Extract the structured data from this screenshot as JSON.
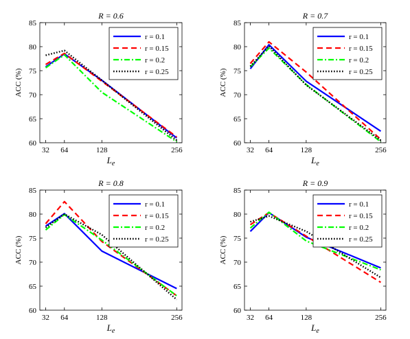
{
  "chart_data": [
    {
      "type": "line",
      "title": "R = 0.6",
      "xlabel_main": "L",
      "xlabel_sub": "e",
      "ylabel": "ACC (%)",
      "ylim": [
        60,
        85
      ],
      "yticks": [
        60,
        65,
        70,
        75,
        80,
        85
      ],
      "xticks": [
        32,
        64,
        128,
        256
      ],
      "legend_position": "top-right",
      "series": [
        {
          "name": "r = 0.1",
          "color": "#0000ff",
          "dash": "solid",
          "x": [
            32,
            64,
            128,
            256
          ],
          "y": [
            75.8,
            78.5,
            73.0,
            61.0
          ]
        },
        {
          "name": "r = 0.15",
          "color": "#ff0000",
          "dash": "dashed",
          "x": [
            32,
            64,
            128,
            256
          ],
          "y": [
            76.3,
            78.6,
            72.8,
            61.2
          ]
        },
        {
          "name": "r = 0.2",
          "color": "#00ff00",
          "dash": "dashdot",
          "x": [
            32,
            64,
            128,
            256
          ],
          "y": [
            75.6,
            78.3,
            70.5,
            60.2
          ]
        },
        {
          "name": "r = 0.25",
          "color": "#000000",
          "dash": "dotted",
          "x": [
            32,
            64,
            128,
            256
          ],
          "y": [
            78.2,
            79.2,
            73.0,
            60.5
          ]
        }
      ]
    },
    {
      "type": "line",
      "title": "R = 0.7",
      "xlabel_main": "L",
      "xlabel_sub": "e",
      "ylabel": "ACC (%)",
      "ylim": [
        60,
        85
      ],
      "yticks": [
        60,
        65,
        70,
        75,
        80,
        85
      ],
      "xticks": [
        32,
        64,
        128,
        256
      ],
      "legend_position": "top-right",
      "series": [
        {
          "name": "r = 0.1",
          "color": "#0000ff",
          "dash": "solid",
          "x": [
            32,
            64,
            128,
            256
          ],
          "y": [
            75.4,
            80.4,
            72.8,
            62.4
          ]
        },
        {
          "name": "r = 0.15",
          "color": "#ff0000",
          "dash": "dashed",
          "x": [
            32,
            64,
            128,
            256
          ],
          "y": [
            76.5,
            81.0,
            74.7,
            60.7
          ]
        },
        {
          "name": "r = 0.2",
          "color": "#00ff00",
          "dash": "dashdot",
          "x": [
            32,
            64,
            128,
            256
          ],
          "y": [
            75.8,
            79.7,
            72.1,
            60.2
          ]
        },
        {
          "name": "r = 0.25",
          "color": "#000000",
          "dash": "dotted",
          "x": [
            32,
            64,
            128,
            256
          ],
          "y": [
            75.9,
            80.1,
            72.0,
            60.5
          ]
        }
      ]
    },
    {
      "type": "line",
      "title": "R = 0.8",
      "xlabel_main": "L",
      "xlabel_sub": "e",
      "ylabel": "ACC (%)",
      "ylim": [
        60,
        85
      ],
      "yticks": [
        60,
        65,
        70,
        75,
        80,
        85
      ],
      "xticks": [
        32,
        64,
        128,
        256
      ],
      "legend_position": "top-right",
      "series": [
        {
          "name": "r = 0.1",
          "color": "#0000ff",
          "dash": "solid",
          "x": [
            32,
            64,
            128,
            256
          ],
          "y": [
            77.5,
            80.1,
            72.3,
            64.5
          ]
        },
        {
          "name": "r = 0.15",
          "color": "#ff0000",
          "dash": "dashed",
          "x": [
            32,
            64,
            128,
            256
          ],
          "y": [
            78.0,
            82.6,
            74.3,
            63.0
          ]
        },
        {
          "name": "r = 0.2",
          "color": "#00ff00",
          "dash": "dashdot",
          "x": [
            32,
            64,
            128,
            256
          ],
          "y": [
            76.7,
            79.9,
            74.6,
            63.0
          ]
        },
        {
          "name": "r = 0.25",
          "color": "#000000",
          "dash": "dotted",
          "x": [
            32,
            64,
            128,
            256
          ],
          "y": [
            77.2,
            80.0,
            75.7,
            62.2
          ]
        }
      ]
    },
    {
      "type": "line",
      "title": "R = 0.9",
      "xlabel_main": "L",
      "xlabel_sub": "e",
      "ylabel": "ACC (%)",
      "ylim": [
        60,
        85
      ],
      "yticks": [
        60,
        65,
        70,
        75,
        80,
        85
      ],
      "xticks": [
        32,
        64,
        128,
        256
      ],
      "legend_position": "top-right",
      "series": [
        {
          "name": "r = 0.1",
          "color": "#0000ff",
          "dash": "solid",
          "x": [
            32,
            64,
            128,
            256
          ],
          "y": [
            76.4,
            80.3,
            75.2,
            68.8
          ]
        },
        {
          "name": "r = 0.15",
          "color": "#ff0000",
          "dash": "dashed",
          "x": [
            32,
            64,
            128,
            256
          ],
          "y": [
            77.8,
            80.3,
            75.4,
            65.8
          ]
        },
        {
          "name": "r = 0.2",
          "color": "#00ff00",
          "dash": "dashdot",
          "x": [
            32,
            64,
            128,
            256
          ],
          "y": [
            77.1,
            80.4,
            74.4,
            68.4
          ]
        },
        {
          "name": "r = 0.25",
          "color": "#000000",
          "dash": "dotted",
          "x": [
            32,
            64,
            128,
            256
          ],
          "y": [
            78.4,
            79.6,
            76.4,
            66.8
          ]
        }
      ]
    }
  ]
}
